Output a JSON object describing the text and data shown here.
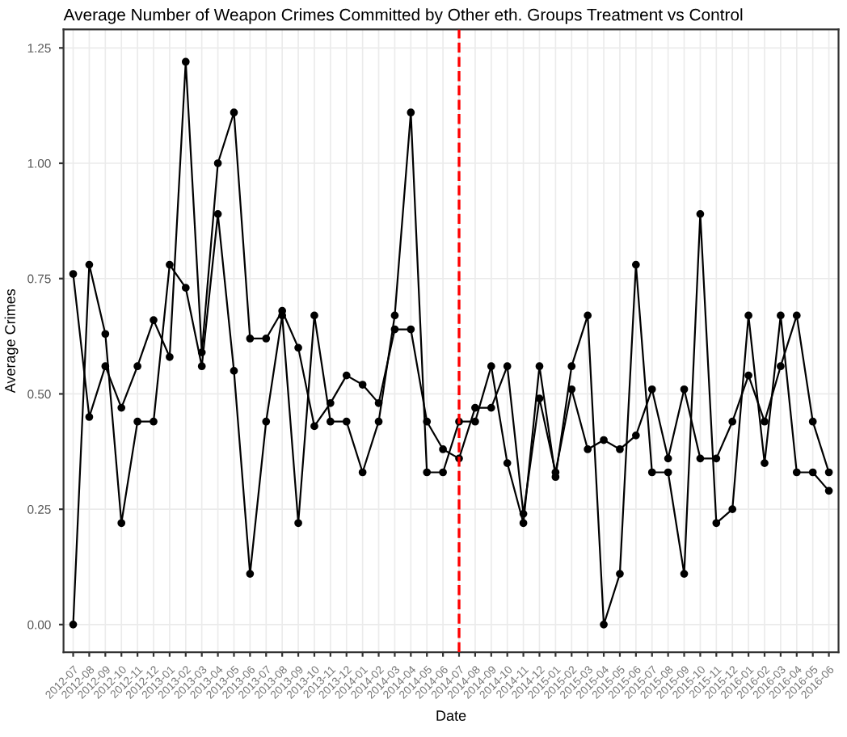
{
  "chart_data": {
    "type": "line",
    "title": "Average Number of Weapon Crimes Committed by Other eth. Groups Treatment vs Control",
    "xlabel": "Date",
    "ylabel": "Average Crimes",
    "categories": [
      "2012-07",
      "2012-08",
      "2012-09",
      "2012-10",
      "2012-11",
      "2012-12",
      "2013-01",
      "2013-02",
      "2013-03",
      "2013-04",
      "2013-05",
      "2013-06",
      "2013-07",
      "2013-08",
      "2013-09",
      "2013-10",
      "2013-11",
      "2013-12",
      "2014-01",
      "2014-02",
      "2014-03",
      "2014-04",
      "2014-05",
      "2014-06",
      "2014-07",
      "2014-08",
      "2014-09",
      "2014-10",
      "2014-11",
      "2014-12",
      "2015-01",
      "2015-02",
      "2015-03",
      "2015-04",
      "2015-05",
      "2015-06",
      "2015-07",
      "2015-08",
      "2015-09",
      "2015-10",
      "2015-11",
      "2015-12",
      "2016-01",
      "2016-02",
      "2016-03",
      "2016-04",
      "2016-05",
      "2016-06"
    ],
    "series": [
      {
        "color": "#000000",
        "values": [
          0.76,
          0.45,
          0.56,
          0.47,
          0.56,
          0.66,
          0.58,
          1.22,
          0.59,
          1.0,
          1.11,
          0.62,
          0.62,
          0.68,
          0.6,
          0.43,
          0.48,
          0.54,
          0.52,
          0.48,
          0.64,
          0.64,
          0.44,
          0.38,
          0.36,
          0.47,
          0.47,
          0.56,
          0.24,
          0.49,
          0.33,
          0.51,
          0.38,
          0.4,
          0.38,
          0.41,
          0.51,
          0.36,
          0.51,
          0.36,
          0.36,
          0.44,
          0.54,
          0.44,
          0.56,
          0.67,
          0.44,
          0.33
        ]
      },
      {
        "color": "#000000",
        "values": [
          0.0,
          0.78,
          0.63,
          0.22,
          0.44,
          0.44,
          0.78,
          0.73,
          0.56,
          0.89,
          0.55,
          0.11,
          0.44,
          0.67,
          0.22,
          0.67,
          0.44,
          0.44,
          0.33,
          0.44,
          0.67,
          1.11,
          0.33,
          0.33,
          0.44,
          0.44,
          0.56,
          0.35,
          0.22,
          0.56,
          0.32,
          0.56,
          0.67,
          0.0,
          0.11,
          0.78,
          0.33,
          0.33,
          0.11,
          0.89,
          0.22,
          0.25,
          0.67,
          0.35,
          0.67,
          0.33,
          0.33,
          0.29
        ]
      }
    ],
    "ylim": [
      -0.06,
      1.29
    ],
    "yticks": [
      {
        "value": 0,
        "label": "0.00"
      },
      {
        "value": 0.25,
        "label": "0.25"
      },
      {
        "value": 0.5,
        "label": "0.50"
      },
      {
        "value": 0.75,
        "label": "0.75"
      },
      {
        "value": 1.0,
        "label": "1.00"
      },
      {
        "value": 1.25,
        "label": "1.25"
      }
    ],
    "ref_lines": [
      {
        "axis": "x",
        "value": "2014-07",
        "color": "#ff0000",
        "line_style": "dashed"
      }
    ],
    "grid": true,
    "marker": "circle",
    "line_style": "solid"
  }
}
